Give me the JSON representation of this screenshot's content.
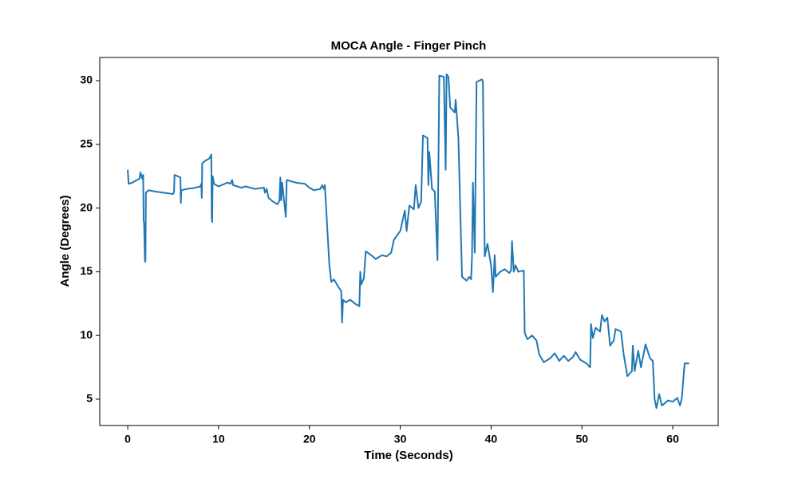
{
  "chart_data": {
    "type": "line",
    "title": "MOCA Angle - Finger Pinch",
    "x_label": "Time (Seconds)",
    "y_label": "Angle (Degrees)",
    "x": [
      0,
      0.1,
      0.5,
      1.0,
      1.3,
      1.4,
      1.6,
      1.7,
      1.75,
      1.8,
      1.9,
      1.95,
      2.0,
      2.3,
      3.0,
      4.0,
      5.0,
      5.1,
      5.15,
      5.5,
      5.8,
      5.85,
      5.9,
      6.5,
      7.5,
      8.0,
      8.1,
      8.15,
      8.2,
      8.5,
      9.0,
      9.2,
      9.25,
      9.3,
      9.35,
      9.5,
      10,
      11,
      11.3,
      11.5,
      11.6,
      12.5,
      13,
      14,
      15,
      15.1,
      15.3,
      15.5,
      16,
      16.5,
      16.7,
      16.8,
      16.9,
      17.0,
      17.3,
      17.4,
      17.5,
      18.5,
      19.5,
      20,
      20.5,
      21.2,
      21.4,
      21.6,
      21.7,
      22.0,
      22.2,
      22.4,
      22.7,
      23.2,
      23.5,
      23.6,
      23.7,
      24.0,
      24.5,
      25.0,
      25.5,
      25.6,
      25.7,
      26.0,
      26.2,
      26.8,
      27.3,
      28.0,
      28.5,
      29.0,
      29.3,
      30,
      30.5,
      30.7,
      31,
      31.5,
      31.7,
      32,
      32.3,
      32.5,
      33,
      33.1,
      33.2,
      33.5,
      33.8,
      34.1,
      34.3,
      34.8,
      35.0,
      35.1,
      35.3,
      35.5,
      36.0,
      36.1,
      36.4,
      36.8,
      37.3,
      37.6,
      37.8,
      37.9,
      38.0,
      38.2,
      38.4,
      39.0,
      39.1,
      39.3,
      39.6,
      40,
      40.2,
      40.4,
      40.5,
      41,
      41.5,
      42,
      42.2,
      42.3,
      42.5,
      42.7,
      43.0,
      43.6,
      43.7,
      44.0,
      44.5,
      45.0,
      45.3,
      45.8,
      46.5,
      47.0,
      47.5,
      48.0,
      48.5,
      49.0,
      49.3,
      49.8,
      50.5,
      50.9,
      51.0,
      51.2,
      51.5,
      52.0,
      52.2,
      52.5,
      52.8,
      53.1,
      53.5,
      53.7,
      54.3,
      54.6,
      55.0,
      55.5,
      55.6,
      55.8,
      56.2,
      56.5,
      57,
      57.5,
      57.8,
      58.0,
      58.2,
      58.5,
      58.8,
      59.5,
      60.0,
      60.5,
      60.8,
      61.0,
      61.3,
      61.8
    ],
    "series": [
      {
        "color": "#1f77b4",
        "values": [
          23.0,
          21.9,
          22.0,
          22.2,
          22.3,
          22.8,
          22.3,
          22.6,
          19.0,
          18.8,
          15.8,
          15.8,
          21.2,
          21.4,
          21.3,
          21.2,
          21.1,
          21.3,
          22.6,
          22.5,
          22.4,
          20.4,
          21.4,
          21.5,
          21.6,
          21.7,
          21.9,
          20.8,
          23.5,
          23.7,
          23.9,
          24.2,
          19.2,
          18.9,
          22.5,
          21.9,
          21.7,
          22.0,
          21.9,
          22.2,
          21.8,
          21.6,
          21.7,
          21.5,
          21.6,
          21.2,
          21.5,
          20.8,
          20.5,
          20.3,
          20.6,
          22.4,
          20.6,
          22.0,
          20.0,
          19.3,
          22.2,
          22.0,
          21.9,
          21.6,
          21.4,
          21.5,
          21.8,
          21.5,
          21.8,
          18.0,
          15.5,
          14.2,
          14.4,
          13.8,
          13.5,
          11.0,
          12.8,
          12.6,
          12.8,
          12.5,
          12.3,
          15.0,
          14.0,
          14.5,
          16.6,
          16.3,
          16.0,
          16.3,
          16.2,
          16.5,
          17.5,
          18.2,
          19.8,
          18.2,
          20.2,
          19.9,
          21.8,
          20.0,
          20.5,
          25.7,
          25.5,
          21.8,
          24.4,
          21.5,
          21.3,
          15.9,
          30.4,
          30.3,
          23.0,
          30.5,
          30.3,
          27.9,
          27.5,
          28.5,
          25.5,
          14.6,
          14.3,
          14.6,
          14.4,
          16.2,
          22.0,
          16.5,
          29.9,
          30.1,
          29.9,
          16.2,
          17.2,
          15.5,
          13.4,
          16.3,
          14.6,
          15.0,
          15.2,
          14.9,
          15.1,
          17.4,
          15.0,
          15.5,
          15.0,
          15.1,
          10.2,
          9.7,
          10.0,
          9.6,
          8.5,
          7.9,
          8.2,
          8.6,
          8.0,
          8.4,
          8.0,
          8.3,
          8.7,
          8.1,
          7.8,
          7.5,
          10.9,
          9.8,
          10.6,
          10.3,
          11.6,
          11.1,
          11.4,
          9.2,
          9.6,
          10.5,
          10.3,
          8.5,
          6.8,
          7.2,
          9.2,
          7.2,
          8.8,
          7.5,
          9.3,
          8.2,
          8.0,
          5.0,
          4.3,
          5.4,
          4.5,
          4.9,
          4.8,
          5.1,
          4.5,
          5.1,
          7.8,
          7.8
        ]
      }
    ],
    "xlim": [
      -3.08,
      65.0
    ],
    "xticks": [
      0,
      10,
      20,
      30,
      40,
      50,
      60
    ],
    "ylim": [
      2.93,
      31.82
    ],
    "yticks": [
      5,
      10,
      15,
      20,
      25,
      30
    ]
  }
}
